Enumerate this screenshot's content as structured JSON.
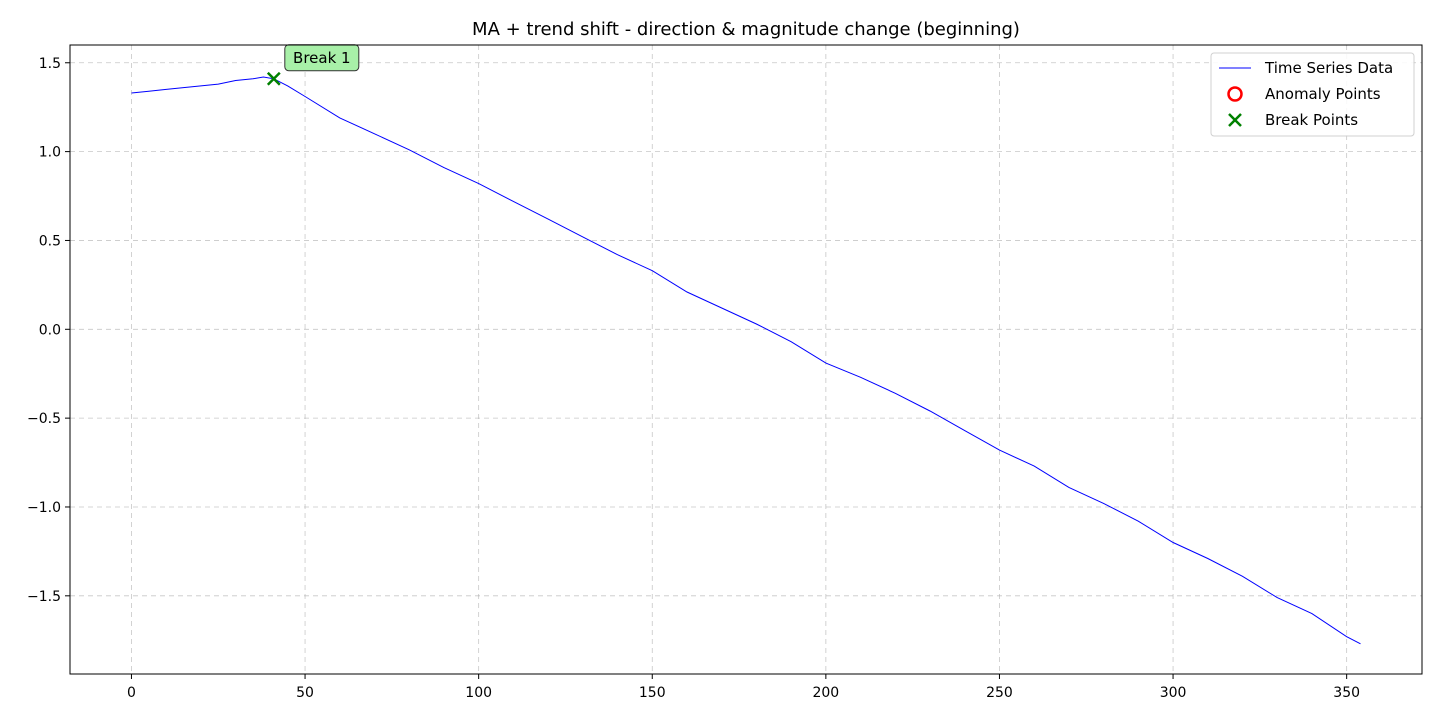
{
  "chart_data": {
    "type": "line",
    "title": "MA + trend shift - direction & magnitude change (beginning)",
    "xlabel": "",
    "ylabel": "",
    "xlim": [
      -17.7,
      371.7
    ],
    "ylim": [
      -1.94,
      1.6
    ],
    "xticks": [
      0,
      50,
      100,
      150,
      200,
      250,
      300,
      350
    ],
    "yticks": [
      1.5,
      1.0,
      0.5,
      0.0,
      -0.5,
      -1.0,
      -1.5
    ],
    "xtick_labels": [
      "0",
      "50",
      "100",
      "150",
      "200",
      "250",
      "300",
      "350"
    ],
    "ytick_labels": [
      "1.5",
      "1.0",
      "0.5",
      "0.0",
      "−0.5",
      "−1.0",
      "−1.5"
    ],
    "grid": true,
    "legend_position": "top-right",
    "series": [
      {
        "name": "Time Series Data",
        "color": "#0000ff",
        "points": [
          [
            0,
            1.33
          ],
          [
            5,
            1.34
          ],
          [
            10,
            1.35
          ],
          [
            15,
            1.36
          ],
          [
            20,
            1.37
          ],
          [
            25,
            1.38
          ],
          [
            30,
            1.4
          ],
          [
            35,
            1.41
          ],
          [
            38,
            1.42
          ],
          [
            41,
            1.41
          ],
          [
            45,
            1.37
          ],
          [
            50,
            1.31
          ],
          [
            60,
            1.19
          ],
          [
            70,
            1.1
          ],
          [
            80,
            1.01
          ],
          [
            90,
            0.91
          ],
          [
            100,
            0.82
          ],
          [
            110,
            0.72
          ],
          [
            120,
            0.62
          ],
          [
            130,
            0.52
          ],
          [
            140,
            0.42
          ],
          [
            150,
            0.33
          ],
          [
            160,
            0.21
          ],
          [
            170,
            0.12
          ],
          [
            180,
            0.03
          ],
          [
            190,
            -0.07
          ],
          [
            200,
            -0.19
          ],
          [
            210,
            -0.27
          ],
          [
            220,
            -0.36
          ],
          [
            230,
            -0.46
          ],
          [
            240,
            -0.57
          ],
          [
            250,
            -0.68
          ],
          [
            260,
            -0.77
          ],
          [
            270,
            -0.89
          ],
          [
            280,
            -0.98
          ],
          [
            290,
            -1.08
          ],
          [
            300,
            -1.2
          ],
          [
            310,
            -1.29
          ],
          [
            320,
            -1.39
          ],
          [
            330,
            -1.51
          ],
          [
            340,
            -1.6
          ],
          [
            350,
            -1.73
          ],
          [
            354,
            -1.77
          ]
        ]
      }
    ],
    "legend": [
      {
        "label": "Time Series Data",
        "marker": "line",
        "color": "#0000ff"
      },
      {
        "label": "Anomaly Points",
        "marker": "circle",
        "color": "#ff0000"
      },
      {
        "label": "Break Points",
        "marker": "x",
        "color": "#008000"
      }
    ],
    "anomaly_points": [],
    "break_points": [
      {
        "x": 41,
        "y": 1.41,
        "label": "Break 1",
        "label_bg": "#a8f0a8"
      }
    ]
  }
}
